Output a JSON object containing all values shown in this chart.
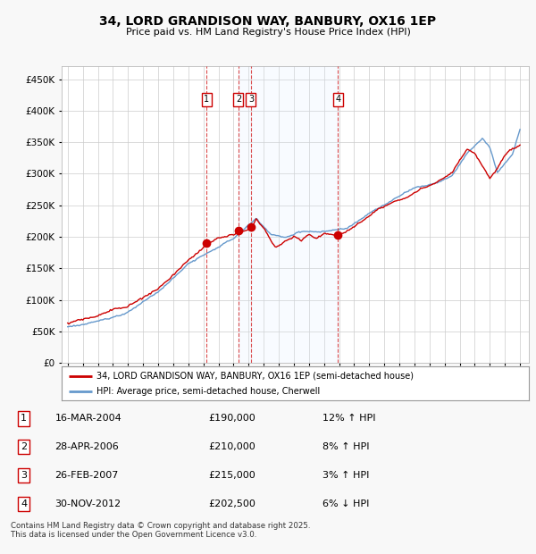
{
  "title": "34, LORD GRANDISON WAY, BANBURY, OX16 1EP",
  "subtitle": "Price paid vs. HM Land Registry's House Price Index (HPI)",
  "ylim": [
    0,
    470000
  ],
  "yticks": [
    0,
    50000,
    100000,
    150000,
    200000,
    250000,
    300000,
    350000,
    400000,
    450000
  ],
  "red_line_color": "#cc0000",
  "blue_line_color": "#6699cc",
  "blue_fill_color": "#ddeeff",
  "sale_dates_decimal": [
    2004.208,
    2006.325,
    2007.158,
    2012.917
  ],
  "sale_prices": [
    190000,
    210000,
    215000,
    202500
  ],
  "sale_labels": [
    "1",
    "2",
    "3",
    "4"
  ],
  "shade_spans": [
    [
      2006.325,
      2012.917
    ]
  ],
  "transaction_table": [
    {
      "label": "1",
      "date": "16-MAR-2004",
      "price": "£190,000",
      "hpi": "12% ↑ HPI"
    },
    {
      "label": "2",
      "date": "28-APR-2006",
      "price": "£210,000",
      "hpi": "8% ↑ HPI"
    },
    {
      "label": "3",
      "date": "26-FEB-2007",
      "price": "£215,000",
      "hpi": "3% ↑ HPI"
    },
    {
      "label": "4",
      "date": "30-NOV-2012",
      "price": "£202,500",
      "hpi": "6% ↓ HPI"
    }
  ],
  "legend_red": "34, LORD GRANDISON WAY, BANBURY, OX16 1EP (semi-detached house)",
  "legend_blue": "HPI: Average price, semi-detached house, Cherwell",
  "footer": "Contains HM Land Registry data © Crown copyright and database right 2025.\nThis data is licensed under the Open Government Licence v3.0.",
  "background_color": "#f8f8f8",
  "plot_bg_color": "#ffffff",
  "grid_color": "#cccccc"
}
